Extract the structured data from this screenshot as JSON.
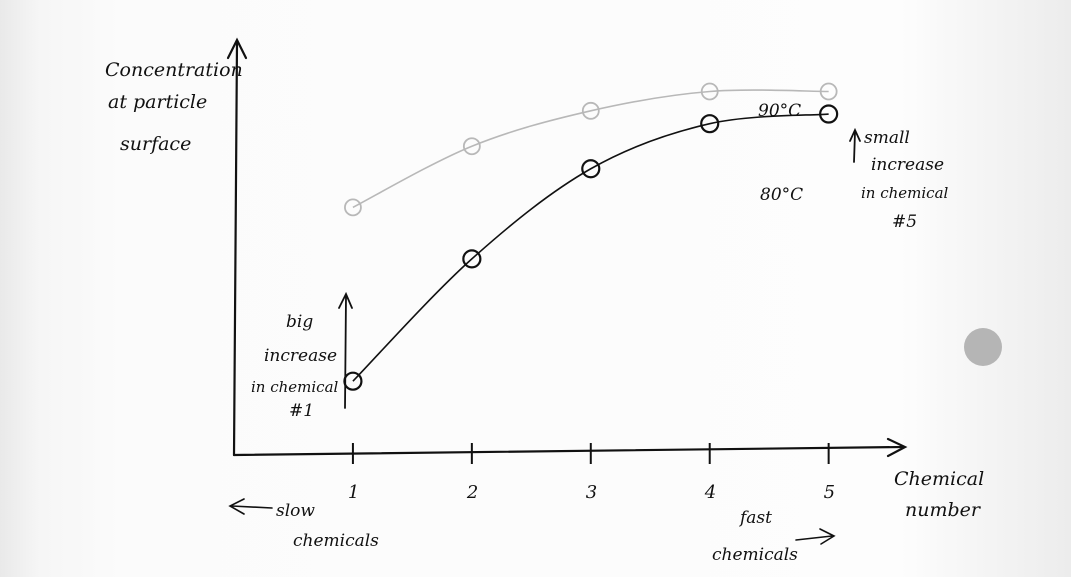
{
  "chart_data": {
    "type": "line",
    "x": [
      1,
      2,
      3,
      4,
      5
    ],
    "categories": [
      "1",
      "2",
      "3",
      "4",
      "5"
    ],
    "series": [
      {
        "name": "90°C",
        "values": [
          6.4,
          8.3,
          9.4,
          10.0,
          10.0
        ],
        "color": "#b8b8b8",
        "label_color": "#dda79a"
      },
      {
        "name": "80°C",
        "values": [
          1.0,
          4.8,
          7.6,
          9.0,
          9.3
        ],
        "color": "#111111",
        "label_color": "#111111"
      }
    ],
    "title": "",
    "ylabel": [
      "Concentration",
      "at particle",
      "surface"
    ],
    "xlabel": [
      "Chemical",
      "number"
    ],
    "xlim": [
      0,
      5.6
    ],
    "ylim": [
      -1.2,
      11.6
    ],
    "grid": false,
    "annotations": {
      "big_increase": [
        "big",
        "increase",
        "in chemical",
        "#1"
      ],
      "small_increase": [
        "small",
        "increase",
        "in chemical",
        "#5"
      ],
      "slow": [
        "slow",
        "chemicals"
      ],
      "fast": [
        "fast",
        "chemicals"
      ]
    }
  },
  "ui": {
    "scroll_indicator_color": "#b5b5b5"
  }
}
